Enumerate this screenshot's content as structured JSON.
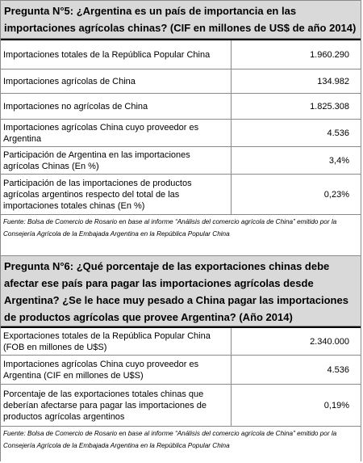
{
  "sections": [
    {
      "title": "Pregunta N°5: ¿Argentina es un país de importancia en las importaciones agrícolas chinas? (CIF en millones de US$ de año 2014)",
      "rows": [
        [
          "Importaciones totales de la República Popular China",
          "1.960.290"
        ],
        [
          "Importaciones agrícolas de China",
          "134.982"
        ],
        [
          "Importaciones no agrícolas de China",
          "1.825.308"
        ],
        [
          "Importaciones agrícolas China cuyo proveedor es Argentina",
          "4.536"
        ],
        [
          "Participación de Argentina en las importaciones agrícolas Chinas (En %)",
          "3,4%"
        ],
        [
          "Participación de las importaciones de productos agrícolas argentinos respecto del total de las importaciones totales chinas (En %)",
          "0,23%"
        ]
      ],
      "source": "Fuente: Bolsa de Comercio de Rosario en base al informe “Análisis del comercio agrícola de China” emitido por la Consejería Agrícola de la Embajada Argentina en la República Popular China"
    },
    {
      "title": "Pregunta N°6: ¿Qué porcentaje de las exportaciones chinas debe afectar ese país para pagar las importaciones agrícolas desde Argentina? ¿Se le hace muy pesado a China pagar las importaciones de productos agrícolas que provee Argentina? (Año 2014)",
      "rows": [
        [
          "Exportaciones totales de la República Popular China (FOB en millones de U$S)",
          "2.340.000"
        ],
        [
          "Importaciones agrícolas China cuyo proveedor es Argentina (CIF en millones de U$S)",
          "4.536"
        ],
        [
          "Porcentaje de las exportaciones totales chinas que deberían afectarse para pagar las importaciones de productos agrícolas argentinos",
          "0,19%"
        ]
      ],
      "source": "Fuente: Bolsa de Comercio de Rosario en base al informe “Análisis del comercio agrícola de China” emitido por la Consejería Agrícola de la Embajada Argentina en la República Popular China"
    }
  ]
}
